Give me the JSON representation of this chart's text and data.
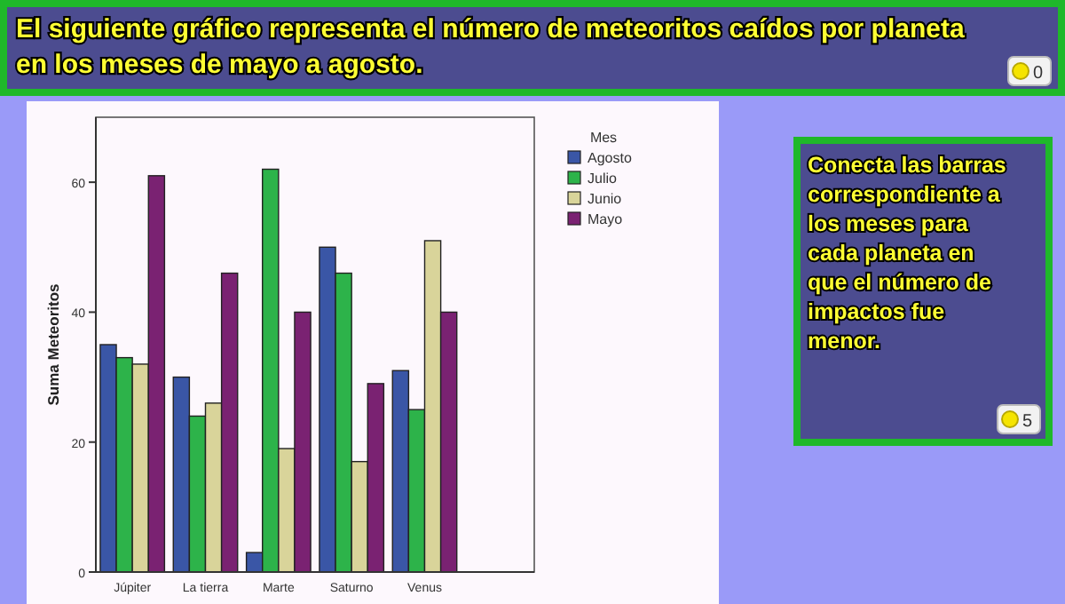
{
  "chart_data": {
    "type": "bar",
    "title": "El siguiente gráfico representa el número de meteoritos caídos por planeta en los meses de mayo a agosto.",
    "ylabel": "Suma Meteoritos",
    "legend_title": "Mes",
    "legend": "top right",
    "categories": [
      "Júpiter",
      "La tierra",
      "Marte",
      "Saturno",
      "Venus",
      null
    ],
    "series": [
      {
        "name": "Agosto",
        "color": "#3a56a6",
        "values": [
          35,
          30,
          3,
          50,
          31,
          0
        ]
      },
      {
        "name": "Julio",
        "color": "#2db34a",
        "values": [
          33,
          24,
          62,
          46,
          25,
          0
        ]
      },
      {
        "name": "Junio",
        "color": "#d9d49a",
        "values": [
          32,
          26,
          19,
          17,
          51,
          0
        ]
      },
      {
        "name": "Mayo",
        "color": "#7a2272",
        "values": [
          61,
          46,
          40,
          29,
          40,
          0
        ]
      }
    ],
    "ylim": [
      0,
      70
    ],
    "yticks": [
      0,
      20,
      40,
      60
    ],
    "grid": false,
    "annotations": [
      "0",
      "Conecta las barras correspondiente a los meses para cada planeta en que el número de impactos fue menor.",
      "5"
    ]
  }
}
